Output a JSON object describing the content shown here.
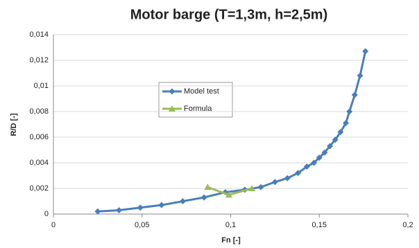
{
  "chart_data": {
    "type": "line",
    "title": "Motor barge (T=1,3m, h=2,5m)",
    "x_label": "Fn [-]",
    "y_label": "R/D [-]",
    "xlim": [
      0,
      0.2
    ],
    "ylim": [
      0,
      0.014
    ],
    "xticks": [
      0,
      {
        "value": 0.05,
        "label": "0,05"
      },
      {
        "value": 0.1,
        "label": "0,1"
      },
      {
        "value": 0.15,
        "label": "0,15"
      },
      {
        "value": 0.2,
        "label": "0,2"
      }
    ],
    "yticks": [
      0,
      {
        "value": 0.002,
        "label": "0,002"
      },
      {
        "value": 0.004,
        "label": "0,004"
      },
      {
        "value": 0.006,
        "label": "0,006"
      },
      {
        "value": 0.008,
        "label": "0,008"
      },
      {
        "value": 0.01,
        "label": "0,01"
      },
      {
        "value": 0.012,
        "label": "0,012"
      },
      {
        "value": 0.014,
        "label": "0,014"
      }
    ],
    "grid": true,
    "series": [
      {
        "name": "Model test",
        "color": "#4a7ebb",
        "marker": "diamond",
        "x": [
          0.025,
          0.037,
          0.049,
          0.061,
          0.073,
          0.085,
          0.097,
          0.108,
          0.117,
          0.125,
          0.132,
          0.138,
          0.143,
          0.147,
          0.15,
          0.153,
          0.156,
          0.159,
          0.162,
          0.165,
          0.167,
          0.17,
          0.173,
          0.176
        ],
        "values": [
          0.0002,
          0.0003,
          0.0005,
          0.0007,
          0.001,
          0.0013,
          0.0017,
          0.0019,
          0.0021,
          0.0025,
          0.0028,
          0.0032,
          0.0037,
          0.004,
          0.0044,
          0.0048,
          0.0053,
          0.0058,
          0.0064,
          0.0071,
          0.008,
          0.0093,
          0.0108,
          0.0127
        ]
      },
      {
        "name": "Formula",
        "color": "#9bbb59",
        "marker": "triangle",
        "x": [
          0.087,
          0.099,
          0.112
        ],
        "values": [
          0.0021,
          0.0015,
          0.002
        ]
      }
    ]
  }
}
